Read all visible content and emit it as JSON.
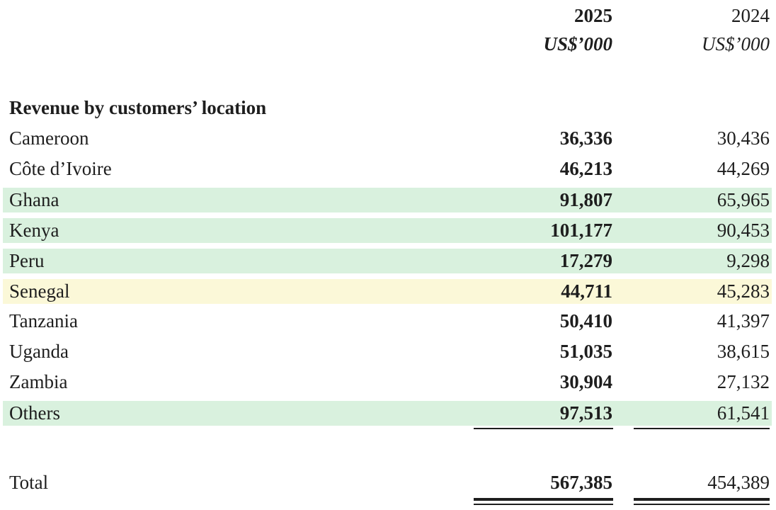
{
  "table": {
    "columns": [
      {
        "year": "2025",
        "unit": "US$’000"
      },
      {
        "year": "2024",
        "unit": "US$’000"
      }
    ],
    "section_heading": "Revenue by customers’ location",
    "rows": [
      {
        "label": "Cameroon",
        "v2025": "36,336",
        "v2024": "30,436",
        "highlight": "none"
      },
      {
        "label": "Côte d’Ivoire",
        "v2025": "46,213",
        "v2024": "44,269",
        "highlight": "none"
      },
      {
        "label": "Ghana",
        "v2025": "91,807",
        "v2024": "65,965",
        "highlight": "green"
      },
      {
        "label": "Kenya",
        "v2025": "101,177",
        "v2024": "90,453",
        "highlight": "green"
      },
      {
        "label": "Peru",
        "v2025": "17,279",
        "v2024": "9,298",
        "highlight": "green"
      },
      {
        "label": "Senegal",
        "v2025": "44,711",
        "v2024": "45,283",
        "highlight": "yellow"
      },
      {
        "label": "Tanzania",
        "v2025": "50,410",
        "v2024": "41,397",
        "highlight": "none"
      },
      {
        "label": "Uganda",
        "v2025": "51,035",
        "v2024": "38,615",
        "highlight": "none"
      },
      {
        "label": "Zambia",
        "v2025": "30,904",
        "v2024": "27,132",
        "highlight": "none"
      },
      {
        "label": "Others",
        "v2025": "97,513",
        "v2024": "61,541",
        "highlight": "green"
      }
    ],
    "total": {
      "label": "Total",
      "v2025": "567,385",
      "v2024": "454,389"
    },
    "colors": {
      "green_highlight": "#d9f1de",
      "yellow_highlight": "#fbf8d8",
      "text": "#1e1e1e"
    }
  }
}
